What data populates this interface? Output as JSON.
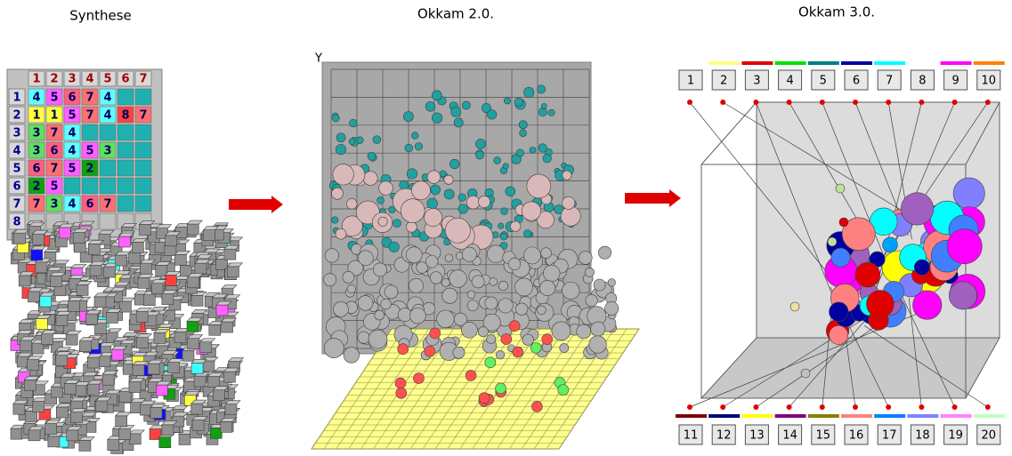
{
  "panels": {
    "synthese": "Synthese",
    "okkam2": "Okkam 2.0.",
    "okkam3": "Okkam 3.0."
  },
  "synthese": {
    "column_headers": [
      "1",
      "2",
      "3",
      "4",
      "5",
      "6",
      "7"
    ],
    "rows": [
      {
        "label": "1",
        "cells": [
          "4",
          "5",
          "6",
          "7",
          "4"
        ]
      },
      {
        "label": "2",
        "cells": [
          "1",
          "1",
          "5",
          "7",
          "4",
          "8",
          "7"
        ]
      },
      {
        "label": "3",
        "cells": [
          "3",
          "7",
          "4"
        ]
      },
      {
        "label": "4",
        "cells": [
          "3",
          "6",
          "4",
          "5",
          "3"
        ]
      },
      {
        "label": "5",
        "cells": [
          "6",
          "7",
          "5",
          "2"
        ]
      },
      {
        "label": "6",
        "cells": [
          "2",
          "5"
        ]
      },
      {
        "label": "7",
        "cells": [
          "7",
          "3",
          "4",
          "6",
          "7"
        ]
      },
      {
        "label": "8",
        "cells": []
      }
    ],
    "digit_colors": {
      "1": "#ffff40",
      "2": "#10a010",
      "3": "#60e060",
      "4": "#60ffff",
      "5": "#ff60ff",
      "6": "#ff6080",
      "7": "#ff7070",
      "8": "#ff4040"
    }
  },
  "okkam2": {
    "axis_label": "Y"
  },
  "okkam3": {
    "top_buttons": [
      {
        "label": "1",
        "color": "#ffffff"
      },
      {
        "label": "2",
        "color": "#ffff80"
      },
      {
        "label": "3",
        "color": "#e00000"
      },
      {
        "label": "4",
        "color": "#00e000"
      },
      {
        "label": "5",
        "color": "#008080"
      },
      {
        "label": "6",
        "color": "#0000a0"
      },
      {
        "label": "7",
        "color": "#00ffff"
      },
      {
        "label": "8",
        "color": "#ffffff"
      },
      {
        "label": "9",
        "color": "#ff00ff"
      },
      {
        "label": "10",
        "color": "#ff8000"
      }
    ],
    "bottom_buttons": [
      {
        "label": "11",
        "color": "#800000"
      },
      {
        "label": "12",
        "color": "#000080"
      },
      {
        "label": "13",
        "color": "#ffff00"
      },
      {
        "label": "14",
        "color": "#800080"
      },
      {
        "label": "15",
        "color": "#808000"
      },
      {
        "label": "16",
        "color": "#ff8080"
      },
      {
        "label": "17",
        "color": "#0080ff"
      },
      {
        "label": "18",
        "color": "#8080ff"
      },
      {
        "label": "19",
        "color": "#ff80ff"
      },
      {
        "label": "20",
        "color": "#c0ffc0"
      }
    ]
  }
}
